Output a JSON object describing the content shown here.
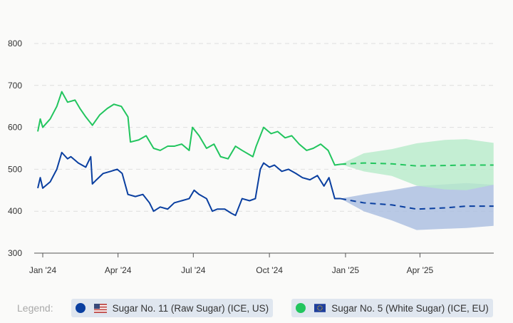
{
  "chart_data": {
    "type": "line",
    "title": "",
    "xlabel": "",
    "ylabel": "",
    "ylim": [
      300,
      800
    ],
    "yticks": [
      300,
      400,
      500,
      600,
      700,
      800
    ],
    "xlim": [
      "2023-12-26",
      "2025-06-29"
    ],
    "xticks": [
      {
        "date": "2024-01-01",
        "label": "Jan '24"
      },
      {
        "date": "2024-04-01",
        "label": "Apr '24"
      },
      {
        "date": "2024-07-01",
        "label": "Jul '24"
      },
      {
        "date": "2024-10-01",
        "label": "Oct '24"
      },
      {
        "date": "2025-01-01",
        "label": "Jan '25"
      },
      {
        "date": "2025-04-01",
        "label": "Apr '25"
      }
    ],
    "grid": "horizontal dashed",
    "legend_placement": "bottom",
    "series": [
      {
        "name": "Sugar No. 11 (Raw Sugar) (ICE, US)",
        "color": "#0a3fa0",
        "band_color": "#a9bde0",
        "flag": "us-flag-icon",
        "history": {
          "x": [
            "2023-12-26",
            "2023-12-29",
            "2024-01-01",
            "2024-01-10",
            "2024-01-18",
            "2024-01-24",
            "2024-01-31",
            "2024-02-04",
            "2024-02-13",
            "2024-02-22",
            "2024-02-28",
            "2024-03-01",
            "2024-03-06",
            "2024-03-14",
            "2024-03-23",
            "2024-03-31",
            "2024-04-06",
            "2024-04-13",
            "2024-04-22",
            "2024-05-01",
            "2024-05-09",
            "2024-05-14",
            "2024-05-22",
            "2024-05-31",
            "2024-06-08",
            "2024-06-17",
            "2024-06-26",
            "2024-07-02",
            "2024-07-08",
            "2024-07-17",
            "2024-07-24",
            "2024-07-30",
            "2024-08-08",
            "2024-08-16",
            "2024-08-21",
            "2024-08-29",
            "2024-09-07",
            "2024-09-14",
            "2024-09-20",
            "2024-09-24",
            "2024-10-01",
            "2024-10-07",
            "2024-10-16",
            "2024-10-24",
            "2024-11-02",
            "2024-11-10",
            "2024-11-19",
            "2024-11-28",
            "2024-12-06",
            "2024-12-12",
            "2024-12-19",
            "2024-12-26"
          ],
          "y": [
            455,
            480,
            455,
            470,
            500,
            540,
            525,
            530,
            515,
            505,
            530,
            465,
            475,
            490,
            495,
            500,
            490,
            440,
            435,
            440,
            420,
            400,
            410,
            405,
            420,
            425,
            430,
            450,
            440,
            430,
            400,
            405,
            405,
            395,
            390,
            430,
            425,
            430,
            500,
            515,
            505,
            510,
            495,
            500,
            490,
            480,
            475,
            485,
            460,
            480,
            430,
            430
          ]
        },
        "forecast": {
          "x": [
            "2024-12-26",
            "2025-01-23",
            "2025-02-26",
            "2025-03-28",
            "2025-05-01",
            "2025-05-27",
            "2025-06-29"
          ],
          "mean": [
            430,
            420,
            415,
            405,
            408,
            412,
            412
          ],
          "upper": [
            430,
            440,
            450,
            460,
            464,
            467,
            463
          ],
          "lower": [
            430,
            400,
            378,
            355,
            358,
            360,
            365
          ]
        }
      },
      {
        "name": "Sugar No. 5 (White Sugar) (ICE, EU)",
        "color": "#22c55e",
        "band_color": "#b7ebc9",
        "flag": "eu-flag-icon",
        "history": {
          "x": [
            "2023-12-26",
            "2023-12-29",
            "2024-01-01",
            "2024-01-10",
            "2024-01-18",
            "2024-01-24",
            "2024-01-31",
            "2024-02-09",
            "2024-02-15",
            "2024-02-22",
            "2024-03-01",
            "2024-03-10",
            "2024-03-19",
            "2024-03-27",
            "2024-04-05",
            "2024-04-13",
            "2024-04-16",
            "2024-04-26",
            "2024-05-05",
            "2024-05-14",
            "2024-05-22",
            "2024-05-31",
            "2024-06-08",
            "2024-06-17",
            "2024-06-26",
            "2024-06-30",
            "2024-07-08",
            "2024-07-17",
            "2024-07-26",
            "2024-08-03",
            "2024-08-12",
            "2024-08-21",
            "2024-08-29",
            "2024-09-11",
            "2024-09-15",
            "2024-09-24",
            "2024-10-03",
            "2024-10-11",
            "2024-10-20",
            "2024-10-28",
            "2024-11-06",
            "2024-11-15",
            "2024-11-23",
            "2024-12-02",
            "2024-12-11",
            "2024-12-19",
            "2024-12-26"
          ],
          "y": [
            590,
            620,
            600,
            620,
            650,
            685,
            660,
            665,
            645,
            625,
            605,
            630,
            645,
            655,
            650,
            625,
            565,
            570,
            580,
            550,
            545,
            555,
            555,
            560,
            545,
            600,
            580,
            550,
            560,
            530,
            525,
            555,
            545,
            530,
            555,
            600,
            585,
            590,
            575,
            580,
            560,
            545,
            550,
            560,
            545,
            510,
            512
          ]
        },
        "forecast": {
          "x": [
            "2024-12-26",
            "2025-01-23",
            "2025-02-26",
            "2025-03-28",
            "2025-05-01",
            "2025-05-27",
            "2025-06-29"
          ],
          "mean": [
            512,
            515,
            513,
            508,
            509,
            510,
            510
          ],
          "upper": [
            512,
            538,
            548,
            562,
            570,
            572,
            563
          ],
          "lower": [
            512,
            495,
            484,
            461,
            452,
            450,
            463
          ]
        }
      }
    ]
  },
  "legend": {
    "label": "Legend:",
    "items": [
      {
        "label": "Sugar No. 11 (Raw Sugar) (ICE, US)",
        "color": "#0a3fa0"
      },
      {
        "label": "Sugar No. 5 (White Sugar) (ICE, EU)",
        "color": "#22c55e"
      }
    ]
  }
}
